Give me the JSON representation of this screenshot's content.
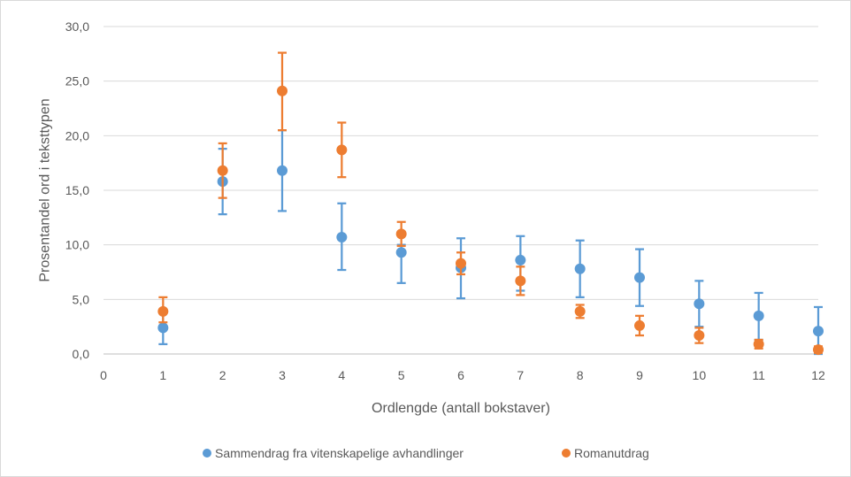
{
  "chart_data": {
    "type": "scatter",
    "title": "",
    "xlabel": "Ordlengde (antall bokstaver)",
    "ylabel": "Prosentandel ord i teksttypen",
    "xlim": [
      0,
      12
    ],
    "ylim": [
      0,
      30
    ],
    "x_ticks": [
      "0",
      "1",
      "2",
      "3",
      "4",
      "5",
      "6",
      "7",
      "8",
      "9",
      "10",
      "11",
      "12"
    ],
    "y_ticks": [
      "0,0",
      "5,0",
      "10,0",
      "15,0",
      "20,0",
      "25,0",
      "30,0"
    ],
    "grid": "horizontal",
    "legend_position": "bottom",
    "error_bars": true,
    "series": [
      {
        "name": "Sammendrag fra vitenskapelige avhandlinger",
        "color": "#5b9bd5",
        "x": [
          1,
          2,
          3,
          4,
          5,
          6,
          7,
          8,
          9,
          10,
          11,
          12
        ],
        "y": [
          2.4,
          15.8,
          16.8,
          10.7,
          9.3,
          7.9,
          8.6,
          7.8,
          7.0,
          4.6,
          3.5,
          2.1
        ],
        "err_low": [
          1.5,
          3.0,
          3.7,
          3.0,
          2.8,
          2.8,
          2.8,
          2.6,
          2.6,
          2.1,
          2.2,
          2.1
        ],
        "err_high": [
          1.5,
          3.0,
          3.7,
          3.1,
          0.7,
          2.7,
          2.2,
          2.6,
          2.6,
          2.1,
          2.1,
          2.2
        ]
      },
      {
        "name": "Romanutdrag",
        "color": "#ed7d31",
        "x": [
          1,
          2,
          3,
          4,
          5,
          6,
          7,
          8,
          9,
          10,
          11,
          12
        ],
        "y": [
          3.9,
          16.8,
          24.1,
          18.7,
          11.0,
          8.3,
          6.7,
          3.9,
          2.6,
          1.7,
          0.9,
          0.4
        ],
        "err_low": [
          1.0,
          2.5,
          3.6,
          2.5,
          1.1,
          1.0,
          1.3,
          0.6,
          0.9,
          0.7,
          0.4,
          0.3
        ],
        "err_high": [
          1.3,
          2.5,
          3.5,
          2.5,
          1.1,
          1.0,
          1.3,
          0.6,
          0.9,
          0.7,
          0.4,
          0.3
        ]
      }
    ]
  }
}
